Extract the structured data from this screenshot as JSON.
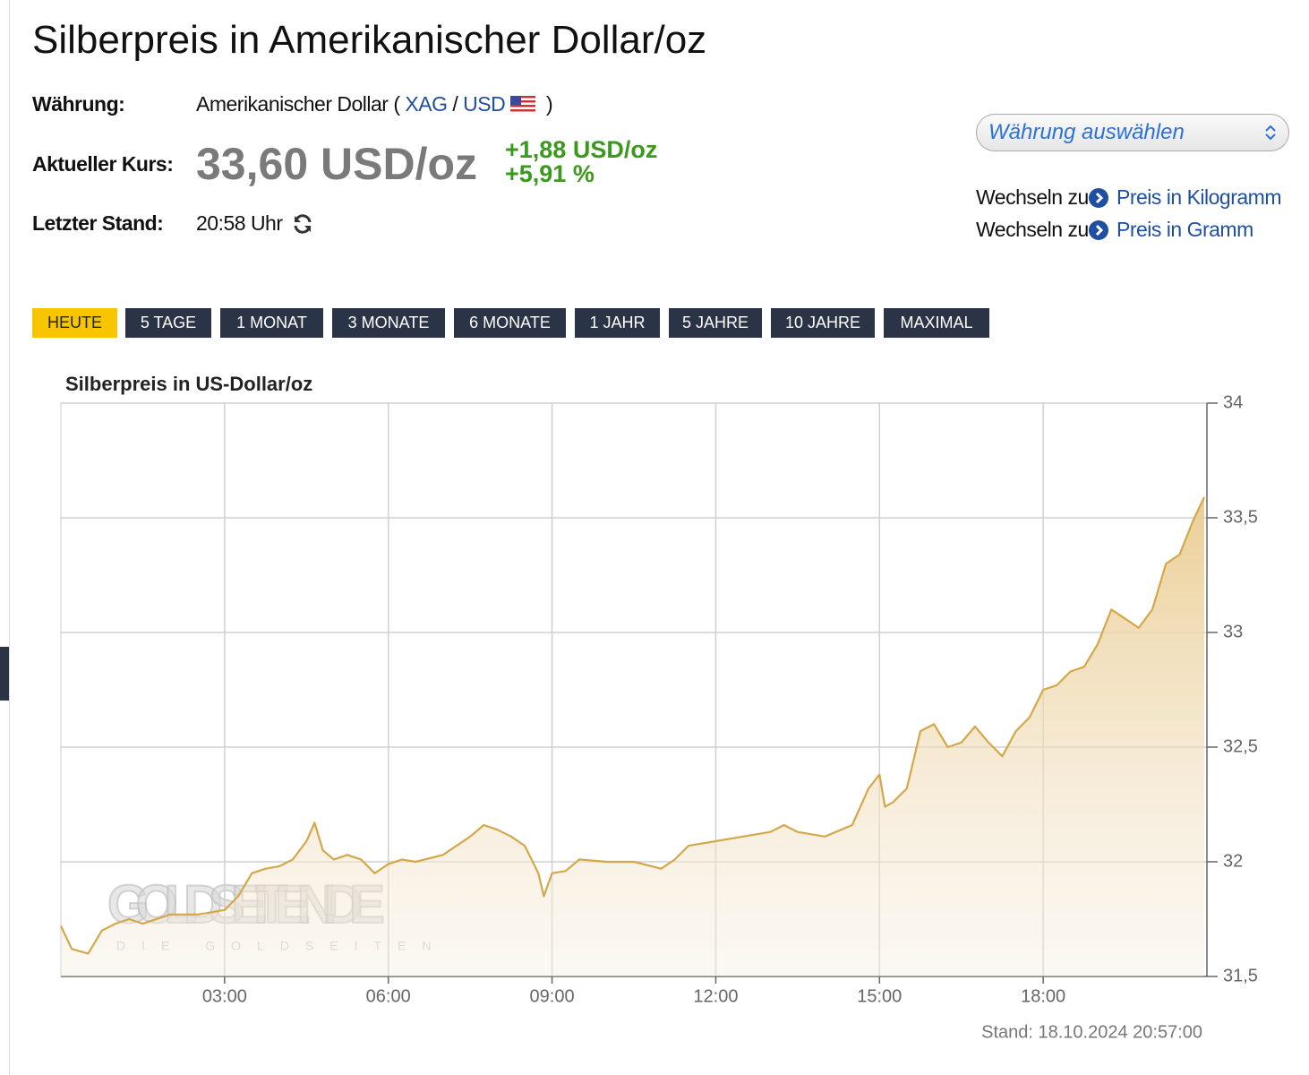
{
  "header": {
    "title": "Silberpreis in Amerikanischer Dollar/oz"
  },
  "info": {
    "currency_label": "Währung:",
    "currency_name": "Amerikanischer Dollar (",
    "currency_base": "XAG",
    "currency_sep": "/",
    "currency_quote": "USD",
    "currency_close": ")",
    "price_label": "Aktueller Kurs:",
    "price": "33,60 USD/oz",
    "change_abs": "+1,88 USD/oz",
    "change_pct": "+5,91 %",
    "updated_label": "Letzter Stand:",
    "updated": "20:58 Uhr"
  },
  "currency_select": "Währung auswählen",
  "links": [
    {
      "prefix": "Wechseln zu",
      "label": "Preis in Kilogramm"
    },
    {
      "prefix": "Wechseln zu",
      "label": "Preis in Gramm"
    }
  ],
  "ranges": [
    "HEUTE",
    "5 TAGE",
    "1 MONAT",
    "3 MONATE",
    "6 MONATE",
    "1 JAHR",
    "5 JAHRE",
    "10 JAHRE",
    "MAXIMAL"
  ],
  "active_range": 0,
  "chart_data": {
    "type": "line",
    "title": "Silberpreis in US-Dollar/oz",
    "footer": "Stand: 18.10.2024 20:57:00",
    "watermark": "GOLDSEITEN.DE",
    "watermark_sub": "DIE GOLDSEITEN",
    "color": "#d4a84a",
    "grid": true,
    "area": true,
    "x": [
      0,
      0.2,
      0.5,
      0.75,
      1,
      1.25,
      1.5,
      2,
      2.5,
      3,
      3.25,
      3.5,
      3.75,
      4,
      4.25,
      4.5,
      4.65,
      4.8,
      5,
      5.25,
      5.5,
      5.75,
      6,
      6.25,
      6.5,
      7,
      7.25,
      7.5,
      7.75,
      8,
      8.25,
      8.5,
      8.75,
      8.85,
      9,
      9.25,
      9.5,
      10,
      10.5,
      11,
      11.25,
      11.5,
      12,
      12.5,
      13,
      13.25,
      13.5,
      14,
      14.5,
      14.8,
      15,
      15.1,
      15.25,
      15.5,
      15.75,
      16,
      16.25,
      16.5,
      16.75,
      17,
      17.25,
      17.5,
      17.75,
      18,
      18.25,
      18.5,
      18.75,
      19,
      19.25,
      19.5,
      19.75,
      20,
      20.25,
      20.5,
      20.75,
      20.95
    ],
    "values": [
      31.72,
      31.62,
      31.6,
      31.7,
      31.73,
      31.75,
      31.73,
      31.77,
      31.77,
      31.79,
      31.85,
      31.95,
      31.97,
      31.98,
      32.01,
      32.09,
      32.17,
      32.05,
      32.01,
      32.03,
      32.01,
      31.95,
      31.99,
      32.01,
      32.0,
      32.03,
      32.07,
      32.11,
      32.16,
      32.14,
      32.11,
      32.07,
      31.95,
      31.85,
      31.95,
      31.96,
      32.01,
      32.0,
      32.0,
      31.97,
      32.01,
      32.07,
      32.09,
      32.11,
      32.13,
      32.16,
      32.13,
      32.11,
      32.16,
      32.32,
      32.38,
      32.24,
      32.26,
      32.32,
      32.57,
      32.6,
      32.5,
      32.52,
      32.59,
      32.52,
      32.46,
      32.57,
      32.63,
      32.75,
      32.77,
      32.83,
      32.85,
      32.95,
      33.1,
      33.06,
      33.02,
      33.1,
      33.3,
      33.34,
      33.49,
      33.59
    ],
    "xlim": [
      0,
      21
    ],
    "xticks": [
      {
        "value": 3,
        "label": "03:00"
      },
      {
        "value": 6,
        "label": "06:00"
      },
      {
        "value": 9,
        "label": "09:00"
      },
      {
        "value": 12,
        "label": "12:00"
      },
      {
        "value": 15,
        "label": "15:00"
      },
      {
        "value": 18,
        "label": "18:00"
      }
    ],
    "ylim": [
      31.5,
      34
    ],
    "yticks": [
      {
        "value": 31.5,
        "label": "31,5"
      },
      32,
      {
        "value": 32.5,
        "label": "32,5"
      },
      33,
      {
        "value": 33.5,
        "label": "33,5"
      },
      34
    ]
  }
}
